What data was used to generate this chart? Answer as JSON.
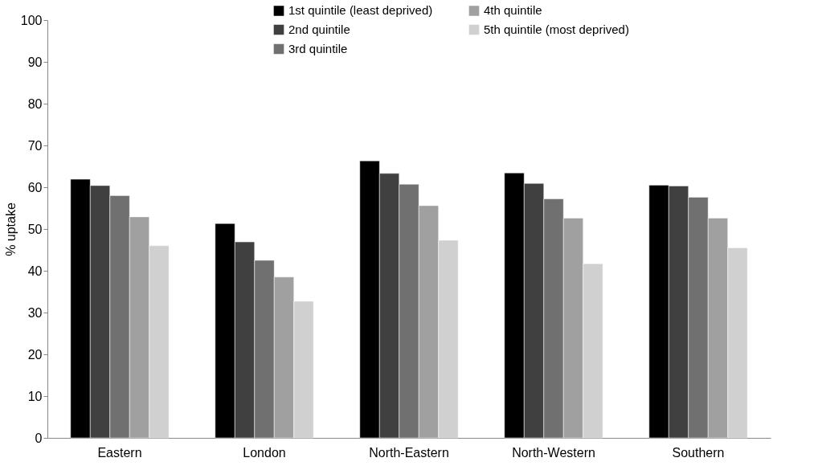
{
  "chart_data": {
    "type": "bar",
    "ylabel": "% uptake",
    "categories": [
      "Eastern",
      "London",
      "North-Eastern",
      "North-Western",
      "Southern"
    ],
    "series": [
      {
        "name": "1st quintile (least deprived)",
        "color": "#000000",
        "values": [
          61.9,
          51.3,
          66.3,
          63.4,
          60.5
        ]
      },
      {
        "name": "2nd quintile",
        "color": "#404040",
        "values": [
          60.4,
          46.9,
          63.3,
          60.9,
          60.3
        ]
      },
      {
        "name": "3rd quintile",
        "color": "#707070",
        "values": [
          58.0,
          42.5,
          60.7,
          57.2,
          57.6
        ]
      },
      {
        "name": "4th quintile",
        "color": "#a0a0a0",
        "values": [
          52.9,
          38.5,
          55.6,
          52.6,
          52.6
        ]
      },
      {
        "name": "5th quintile (most deprived)",
        "color": "#d0d0d0",
        "values": [
          46.0,
          32.7,
          47.3,
          41.7,
          45.5
        ]
      }
    ],
    "ylim": [
      0,
      100
    ],
    "yticks": [
      0,
      10,
      20,
      30,
      40,
      50,
      60,
      70,
      80,
      90,
      100
    ],
    "grid": false,
    "legend": "top"
  }
}
